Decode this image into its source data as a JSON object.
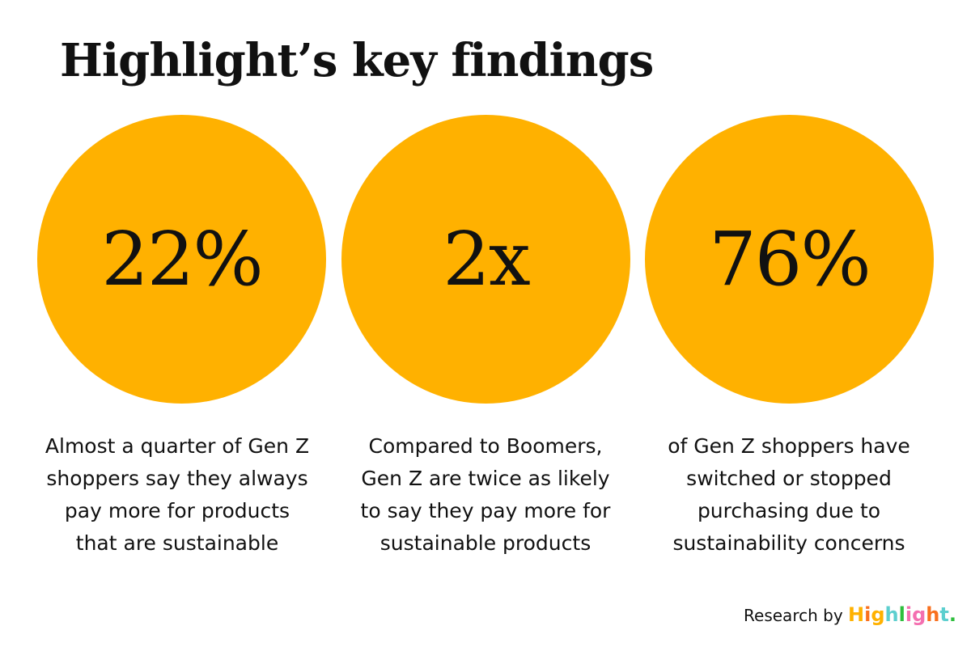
{
  "title": "Highlight’s key findings",
  "findings": [
    {
      "stat": "22%",
      "description": "Almost a quarter of Gen Z shoppers say they always pay more for products that are sustainable"
    },
    {
      "stat": "2x",
      "description": "Compared to Boomers, Gen Z are twice as likely to say they pay more for sustainable products"
    },
    {
      "stat": "76%",
      "description": "of Gen Z shoppers have switched or stopped purchasing due to sustainability concerns"
    }
  ],
  "credit": {
    "prefix": "Research by",
    "logo_text": "Highlight."
  },
  "colors": {
    "circle": "#FFB100",
    "text": "#111111"
  }
}
